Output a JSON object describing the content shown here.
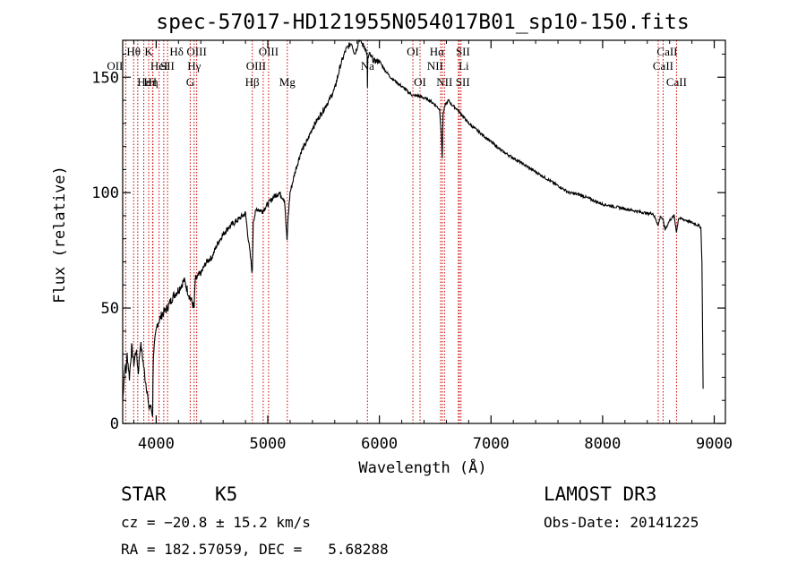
{
  "chart_data": {
    "type": "line",
    "title": "spec-57017-HD121955N054017B01_sp10-150.fits",
    "xlabel": "Wavelength (Å)",
    "ylabel": "Flux (relative)",
    "xlim": [
      3700,
      9100
    ],
    "ylim": [
      0,
      166
    ],
    "x_ticks": [
      4000,
      5000,
      6000,
      7000,
      8000,
      9000
    ],
    "x_tick_labels": [
      "4000",
      "5000",
      "6000",
      "7000",
      "8000",
      "9000"
    ],
    "y_ticks": [
      0,
      50,
      100,
      150
    ],
    "y_tick_labels": [
      "0",
      "50",
      "100",
      "150"
    ],
    "series": [
      {
        "name": "spectrum",
        "x": [
          3700,
          3710,
          3720,
          3730,
          3740,
          3760,
          3780,
          3800,
          3820,
          3840,
          3860,
          3880,
          3900,
          3920,
          3933,
          3945,
          3968,
          3975,
          3990,
          4010,
          4050,
          4100,
          4150,
          4200,
          4250,
          4300,
          4340,
          4350,
          4400,
          4450,
          4500,
          4550,
          4600,
          4650,
          4700,
          4750,
          4800,
          4861,
          4870,
          4900,
          4950,
          5000,
          5050,
          5100,
          5150,
          5172,
          5183,
          5200,
          5250,
          5300,
          5350,
          5400,
          5450,
          5500,
          5550,
          5600,
          5650,
          5700,
          5750,
          5780,
          5800,
          5820,
          5850,
          5870,
          5890,
          5893,
          5896,
          5910,
          5950,
          6000,
          6050,
          6100,
          6150,
          6200,
          6250,
          6300,
          6350,
          6400,
          6450,
          6500,
          6540,
          6555,
          6563,
          6570,
          6590,
          6620,
          6650,
          6700,
          6750,
          6800,
          6850,
          6900,
          6950,
          7000,
          7100,
          7200,
          7300,
          7400,
          7500,
          7600,
          7700,
          7800,
          7900,
          8000,
          8100,
          8200,
          8300,
          8400,
          8450,
          8498,
          8520,
          8542,
          8560,
          8600,
          8640,
          8662,
          8680,
          8750,
          8800,
          8850,
          8880,
          8890,
          8895,
          8900
        ],
        "y": [
          9,
          18,
          25,
          22,
          30,
          20,
          33,
          26,
          32,
          22,
          35,
          28,
          20,
          14,
          6,
          8,
          4,
          30,
          36,
          43,
          47,
          50,
          55,
          58,
          62,
          55,
          50,
          62,
          65,
          70,
          72,
          78,
          82,
          85,
          87,
          89,
          91,
          65,
          88,
          93,
          92,
          95,
          98,
          100,
          97,
          79,
          90,
          100,
          110,
          118,
          122,
          128,
          132,
          136,
          140,
          145,
          155,
          162,
          165,
          160,
          163,
          167,
          164,
          163,
          160,
          145,
          158,
          160,
          157,
          157,
          153,
          150,
          148,
          146,
          144,
          142,
          142,
          141,
          140,
          138,
          136,
          125,
          115,
          134,
          138,
          140,
          138,
          136,
          133,
          130,
          128,
          126,
          124,
          122,
          118,
          115,
          112,
          109,
          106,
          103,
          100,
          99,
          97,
          95,
          94,
          93,
          92,
          91,
          91,
          86,
          90,
          88,
          84,
          88,
          90,
          83,
          89,
          88,
          87,
          86,
          85,
          70,
          40,
          15
        ]
      }
    ],
    "line_marker_labels": [
      "Hθ",
      "OII",
      "Hε",
      "Hη",
      "K",
      "HeI",
      "H",
      "Hδ",
      "SII",
      "OIII",
      "Hγ",
      "G",
      "Hβ",
      "OIII",
      "OIII",
      "Mg",
      "Na",
      "OI",
      "OI",
      "Hα",
      "NII",
      "NII",
      "SII",
      "Li",
      "SII",
      "CaII",
      "CaII",
      "CaII"
    ],
    "annotations": {
      "object_class": "STAR",
      "subclass": "K5",
      "survey": "LAMOST DR3",
      "redshift": "cz = −20.8 ± 15.2 km/s",
      "obs_date": "Obs-Date: 20141225",
      "coords": "RA = 182.57059, DEC =   5.68288"
    }
  }
}
